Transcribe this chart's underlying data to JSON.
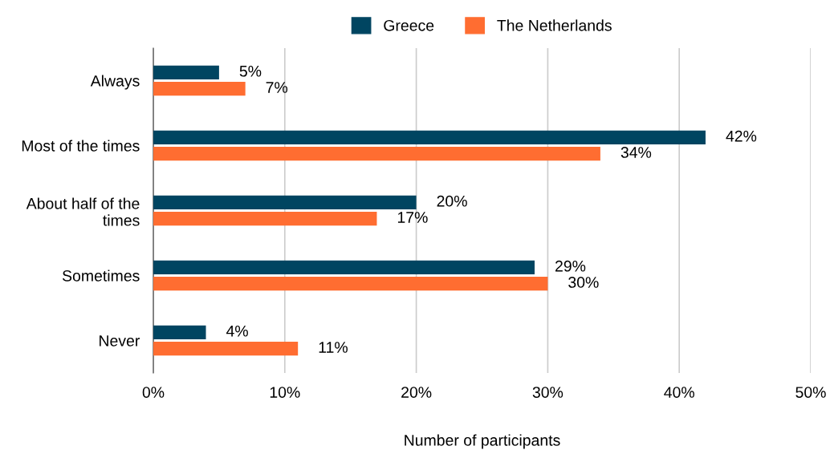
{
  "chart_data": {
    "type": "bar",
    "orientation": "horizontal",
    "xlabel": "Number of participants",
    "categories": [
      "Always",
      "Most of the times",
      "About half of the\ntimes",
      "Sometimes",
      "Never"
    ],
    "series": [
      {
        "name": "Greece",
        "color": "#004561",
        "values": [
          5,
          42,
          20,
          29,
          4
        ],
        "value_labels": [
          "5%",
          "42%",
          "20%",
          "29%",
          "4%"
        ]
      },
      {
        "name": "The Netherlands",
        "color": "#ff6d31",
        "values": [
          7,
          34,
          17,
          30,
          11
        ],
        "value_labels": [
          "7%",
          "34%",
          "17%",
          "30%",
          "11%"
        ]
      }
    ],
    "xlim": [
      0,
      50
    ],
    "xticks": [
      {
        "value": 0,
        "label": "0%"
      },
      {
        "value": 10,
        "label": "10%"
      },
      {
        "value": 20,
        "label": "20%"
      },
      {
        "value": 30,
        "label": "30%"
      },
      {
        "value": 40,
        "label": "40%"
      },
      {
        "value": 50,
        "label": "50%"
      }
    ],
    "grid": "x",
    "legend": "top"
  }
}
